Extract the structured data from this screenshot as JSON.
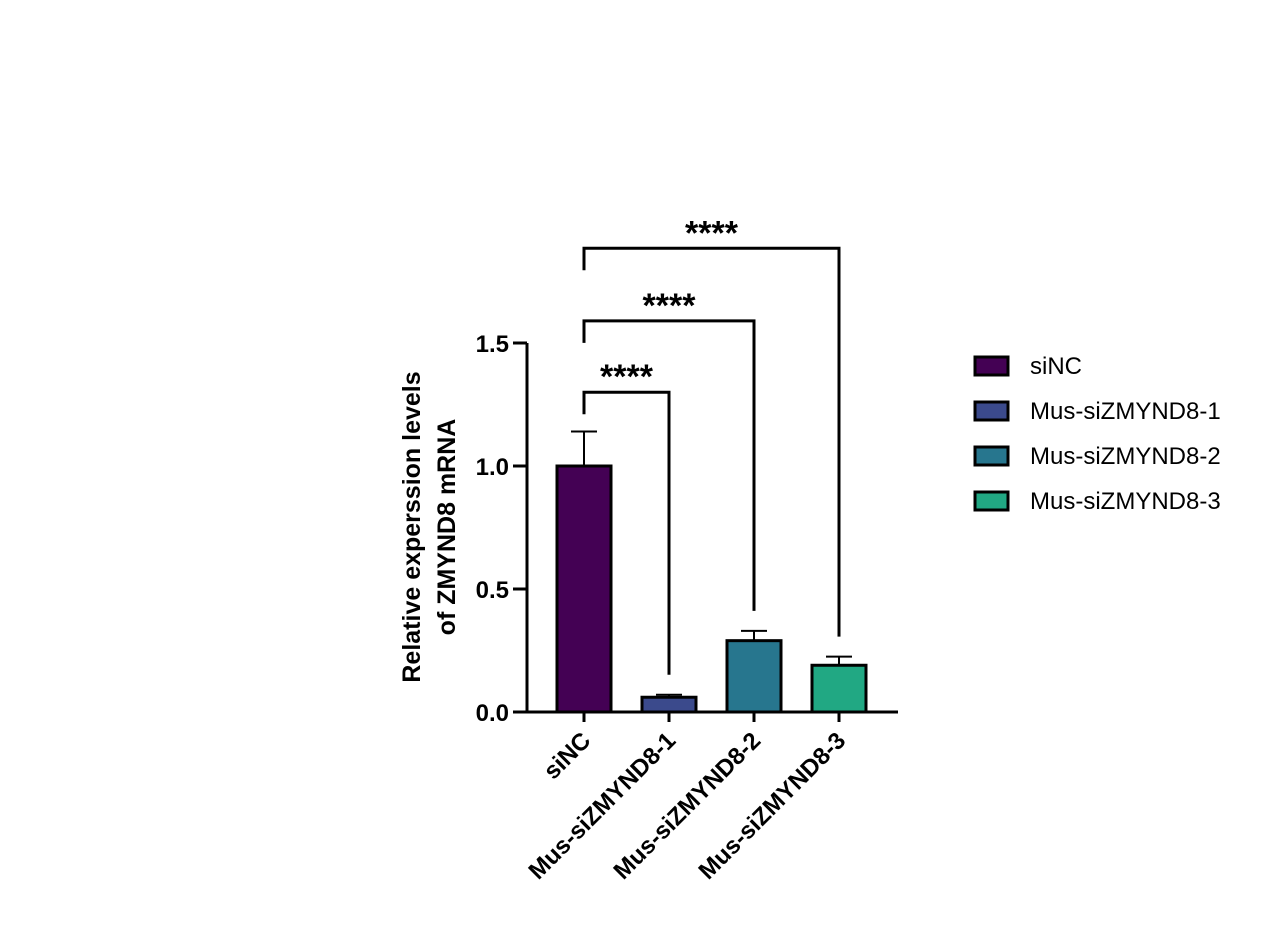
{
  "chart_data": {
    "type": "bar",
    "title": "",
    "xlabel": "",
    "ylabel_lines": [
      "Relative experssion levels",
      "of ZMYND8 mRNA"
    ],
    "ylim": [
      0,
      1.5
    ],
    "yticks": [
      {
        "value": 0,
        "label": "0.0"
      },
      {
        "value": 0.5,
        "label": "0.5"
      },
      {
        "value": 1.0,
        "label": "1.0"
      },
      {
        "value": 1.5,
        "label": "1.5"
      }
    ],
    "categories": [
      "siNC",
      "Mus-siZMYND8-1",
      "Mus-siZMYND8-2",
      "Mus-siZMYND8-3"
    ],
    "values": [
      1.0,
      0.06,
      0.29,
      0.19
    ],
    "errors": [
      0.14,
      0.01,
      0.04,
      0.035
    ],
    "colors": [
      "#440154",
      "#3b4a8c",
      "#27768e",
      "#21a883"
    ],
    "legend_position": "right",
    "significance": [
      {
        "from": 0,
        "to": 1,
        "label": "****",
        "level": 1.3
      },
      {
        "from": 0,
        "to": 2,
        "label": "****",
        "level": 1.59
      },
      {
        "from": 0,
        "to": 3,
        "label": "****",
        "level": 1.885
      }
    ]
  }
}
